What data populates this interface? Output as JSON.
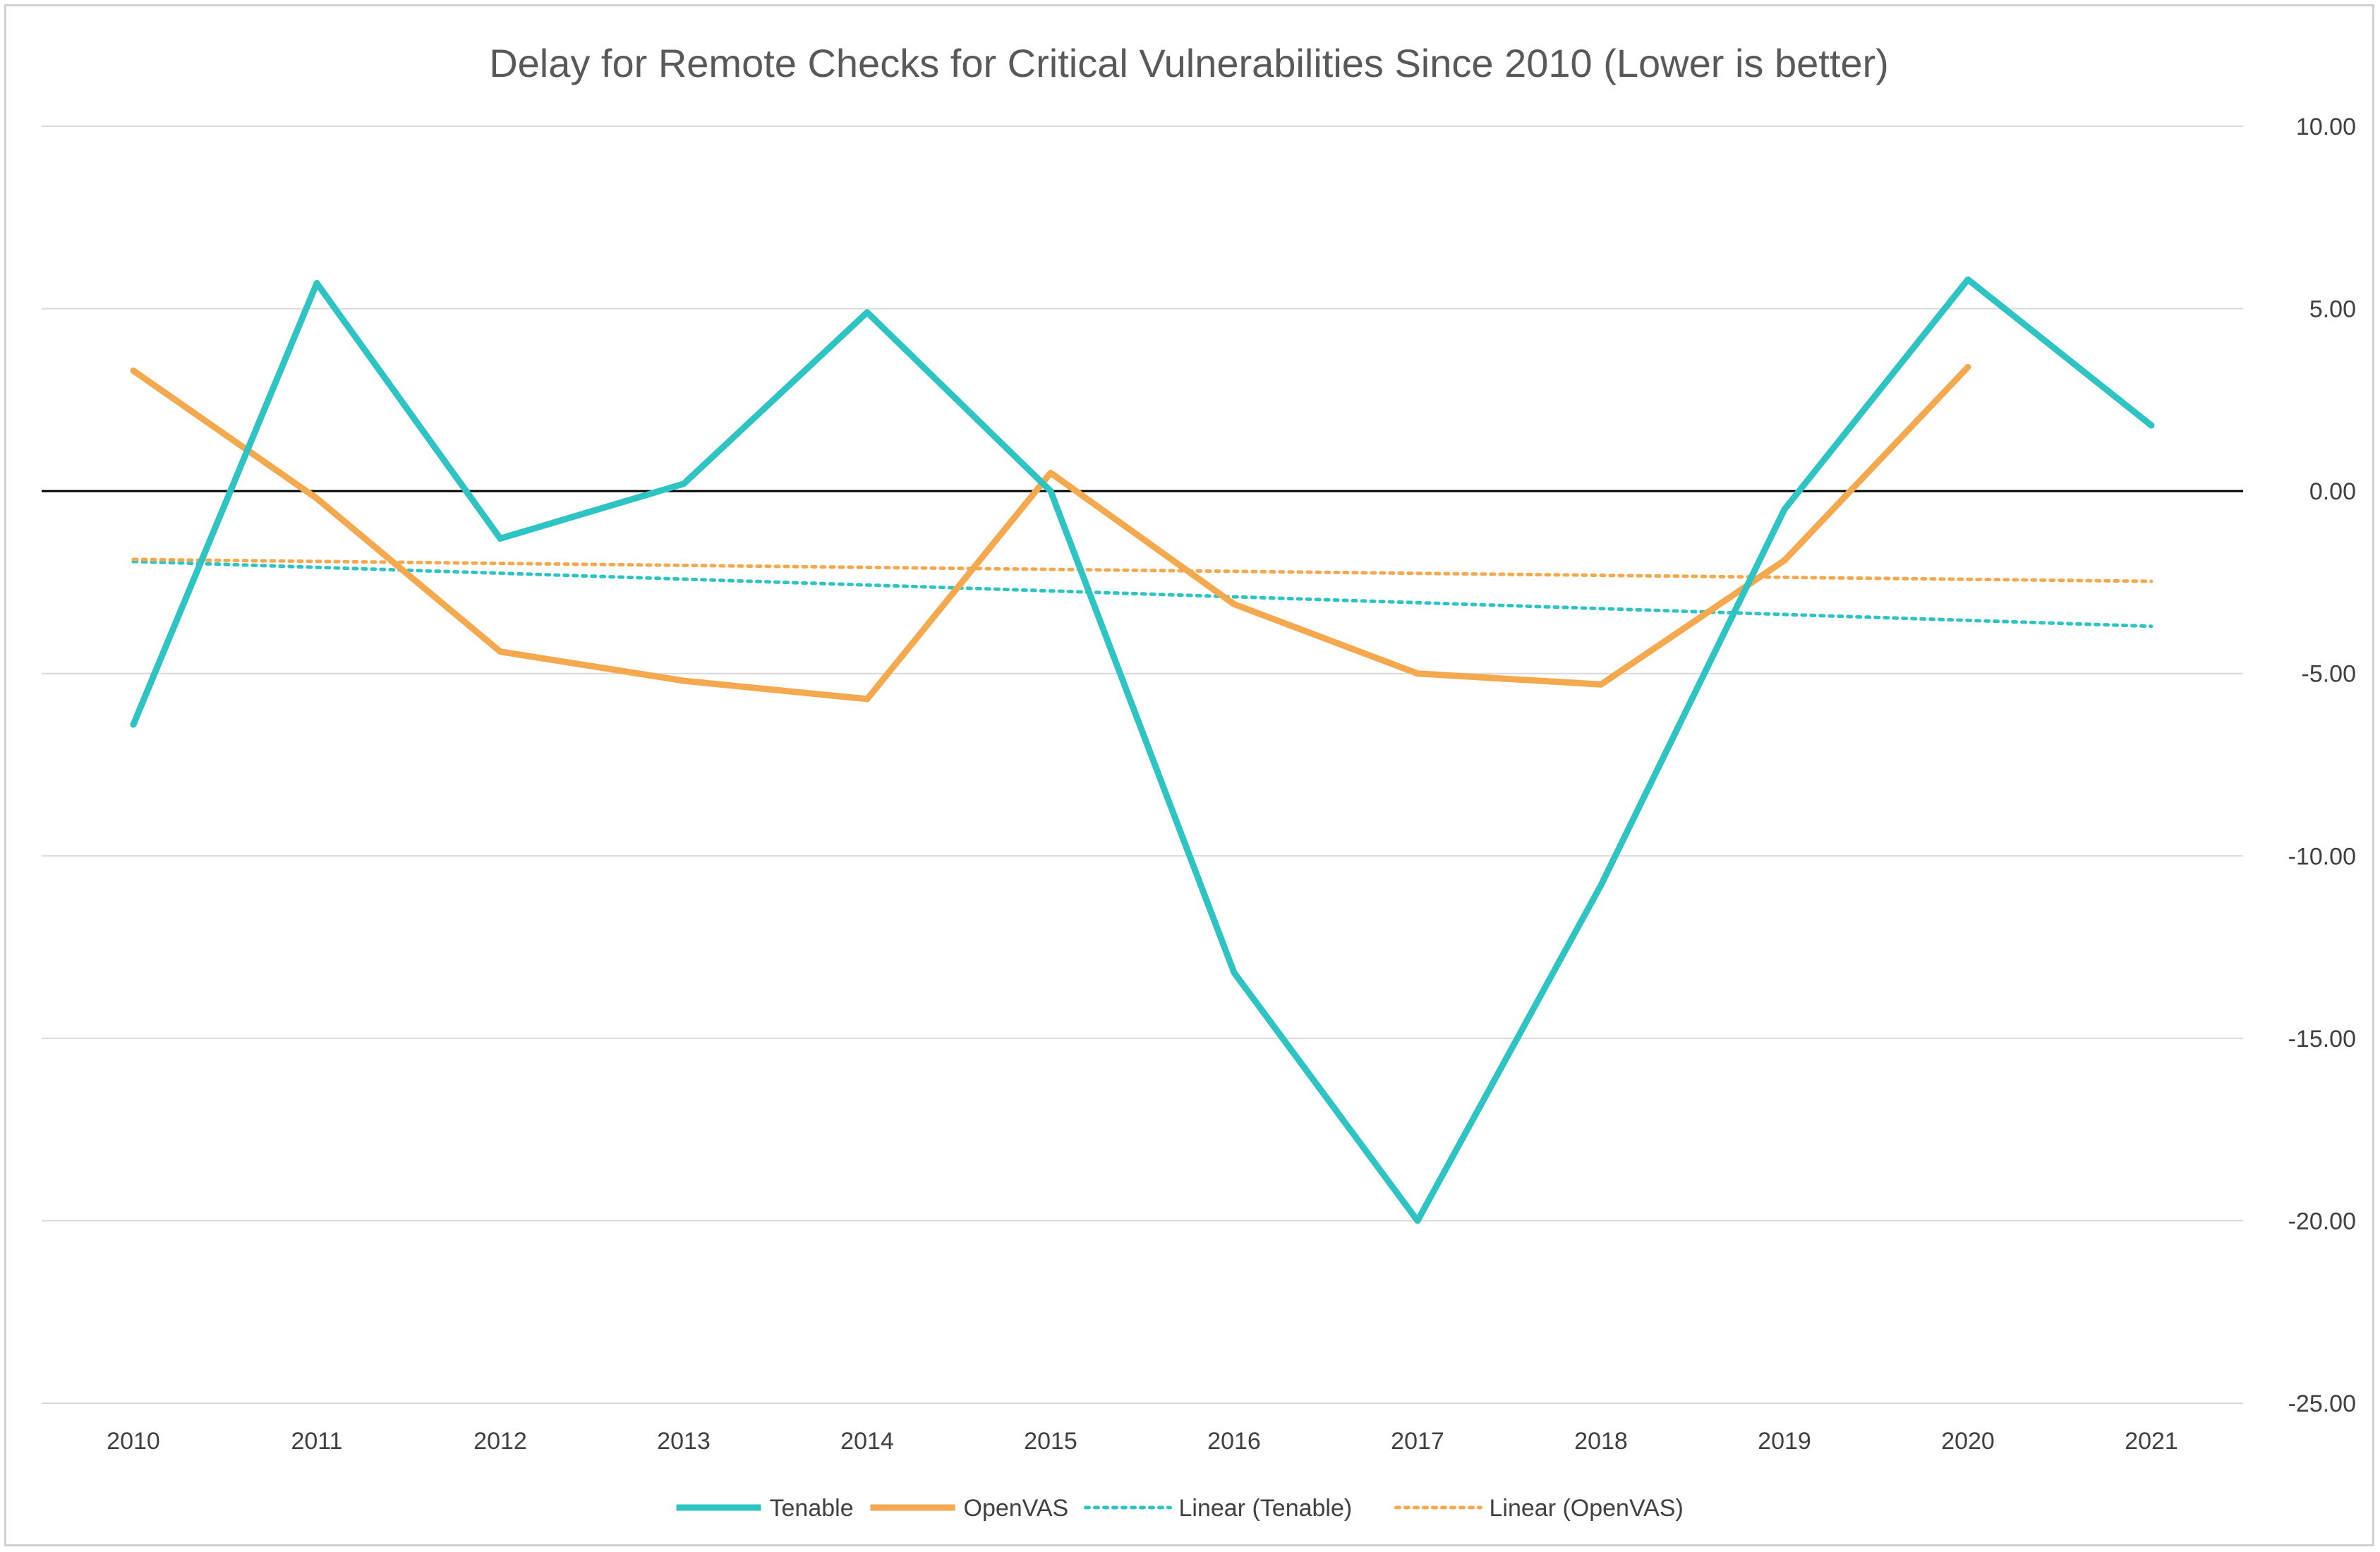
{
  "chart_data": {
    "type": "line",
    "title": "Delay for Remote Checks for Critical Vulnerabilities Since 2010 (Lower is better)",
    "xlabel": "",
    "ylabel": "",
    "categories": [
      "2010",
      "2011",
      "2012",
      "2013",
      "2014",
      "2015",
      "2016",
      "2017",
      "2018",
      "2019",
      "2020",
      "2021"
    ],
    "ylim": [
      -25,
      10
    ],
    "yticks": [
      10,
      5,
      0,
      -5,
      -10,
      -15,
      -20,
      -25
    ],
    "ytick_labels": [
      "10.00",
      "5.00",
      "0.00",
      "-5.00",
      "-10.00",
      "-15.00",
      "-20.00",
      "-25.00"
    ],
    "y_axis_side": "right",
    "grid": true,
    "legend_position": "bottom",
    "series": [
      {
        "name": "Tenable",
        "color": "#2ec4c4",
        "style": "solid",
        "values": [
          -6.4,
          5.7,
          -1.3,
          0.2,
          4.9,
          0.0,
          -13.2,
          -20.0,
          -10.8,
          -0.5,
          5.8,
          1.8
        ]
      },
      {
        "name": "OpenVAS",
        "color": "#f4a94e",
        "style": "solid",
        "values": [
          3.3,
          -0.2,
          -4.4,
          -5.2,
          -5.7,
          0.5,
          -3.1,
          -5.0,
          -5.3,
          -1.9,
          3.4,
          null
        ]
      },
      {
        "name": "Linear (Tenable)",
        "color": "#2ec4c4",
        "style": "dotted",
        "trend_of": "Tenable"
      },
      {
        "name": "Linear (OpenVAS)",
        "color": "#f4a94e",
        "style": "dotted",
        "trend_of": "OpenVAS"
      }
    ]
  }
}
